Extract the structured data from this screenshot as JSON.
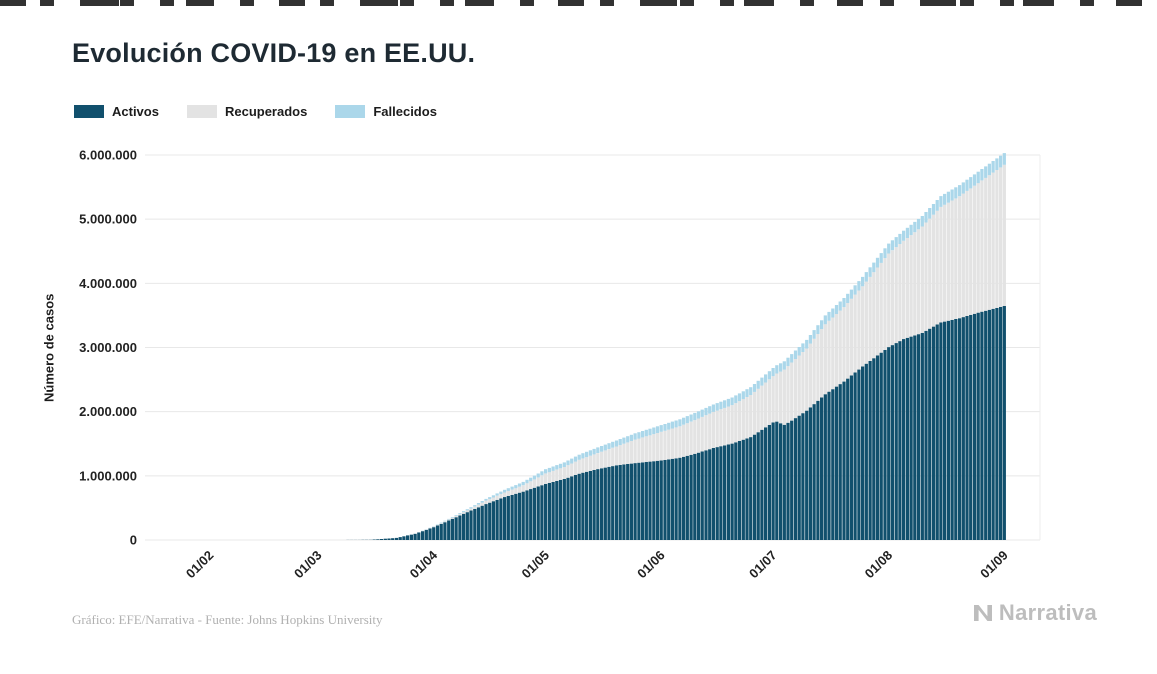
{
  "title": "Evolución COVID-19 en EE.UU.",
  "legend": {
    "items": [
      {
        "label": "Activos",
        "color": "#11506d"
      },
      {
        "label": "Recuperados",
        "color": "#e3e3e3"
      },
      {
        "label": "Fallecidos",
        "color": "#abd7ea"
      }
    ]
  },
  "y_axis": {
    "label": "Número de casos",
    "ticks": [
      {
        "label": "0",
        "value": 0
      },
      {
        "label": "1.000.000",
        "value": 1000000
      },
      {
        "label": "2.000.000",
        "value": 2000000
      },
      {
        "label": "3.000.000",
        "value": 3000000
      },
      {
        "label": "4.000.000",
        "value": 4000000
      },
      {
        "label": "5.000.000",
        "value": 5000000
      },
      {
        "label": "6.000.000",
        "value": 6000000
      }
    ]
  },
  "x_axis": {
    "ticks": [
      {
        "label": "01/02",
        "day": 32
      },
      {
        "label": "01/03",
        "day": 61
      },
      {
        "label": "01/04",
        "day": 92
      },
      {
        "label": "01/05",
        "day": 122
      },
      {
        "label": "01/06",
        "day": 153
      },
      {
        "label": "01/07",
        "day": 183
      },
      {
        "label": "01/08",
        "day": 214
      },
      {
        "label": "01/09",
        "day": 245
      }
    ]
  },
  "footer": {
    "credit": "Gráfico: EFE/Narrativa - Fuente: Johns Hopkins University",
    "brand": "Narrativa"
  },
  "chart_data": {
    "type": "bar",
    "stacked": true,
    "title": "Evolución COVID-19 en EE.UU.",
    "ylabel": "Número de casos",
    "ylim": [
      0,
      6000000
    ],
    "grid": "horizontal",
    "legend_position": "top-left",
    "x_unit": "day_of_year_2020",
    "dates": [
      "22/01",
      "01/02",
      "15/02",
      "01/03",
      "08/03",
      "15/03",
      "22/03",
      "27/03",
      "01/04",
      "06/04",
      "11/04",
      "15/04",
      "20/04",
      "25/04",
      "01/05",
      "06/05",
      "10/05",
      "15/05",
      "20/05",
      "25/05",
      "01/06",
      "06/06",
      "10/06",
      "15/06",
      "20/06",
      "25/06",
      "01/07",
      "02/07",
      "04/07",
      "06/07",
      "10/07",
      "15/07",
      "20/07",
      "25/07",
      "01/08",
      "05/08",
      "10/08",
      "15/08",
      "20/08",
      "25/08",
      "01/09"
    ],
    "days": [
      22,
      32,
      46,
      61,
      68,
      75,
      82,
      87,
      92,
      97,
      102,
      106,
      111,
      116,
      122,
      127,
      131,
      136,
      141,
      146,
      153,
      158,
      162,
      167,
      172,
      177,
      183,
      184,
      186,
      188,
      192,
      197,
      202,
      207,
      214,
      218,
      223,
      228,
      233,
      238,
      245
    ],
    "series": [
      {
        "name": "Activos",
        "color": "#11506d",
        "values": [
          1,
          8,
          13,
          70,
          480,
          3400,
          32400,
          97000,
          200000,
          330000,
          460000,
          560000,
          670000,
          754000,
          874000,
          950000,
          1034000,
          1105000,
          1164000,
          1198000,
          1240000,
          1282000,
          1343000,
          1434000,
          1502000,
          1604000,
          1832000,
          1845000,
          1795000,
          1860000,
          2016000,
          2272000,
          2469000,
          2704000,
          3006000,
          3132000,
          3227000,
          3391000,
          3457000,
          3543000,
          3647000
        ]
      },
      {
        "name": "Recuperados",
        "color": "#e3e3e3",
        "values": [
          0,
          0,
          3,
          7,
          8,
          12,
          180,
          900,
          8500,
          17000,
          31000,
          52000,
          71000,
          99000,
          164000,
          187000,
          216000,
          250000,
          294000,
          366000,
          445000,
          490000,
          525000,
          562000,
          600000,
          656000,
          720000,
          750000,
          860000,
          906000,
          969000,
          1090000,
          1160000,
          1250000,
          1460000,
          1530000,
          1660000,
          1800000,
          1900000,
          2020000,
          2200000
        ]
      },
      {
        "name": "Fallecidos",
        "color": "#abd7ea",
        "values": [
          0,
          0,
          0,
          1,
          22,
          63,
          420,
          1600,
          5100,
          10800,
          20500,
          28300,
          42000,
          52000,
          65000,
          72000,
          79500,
          87500,
          93400,
          98200,
          105000,
          109000,
          112000,
          115800,
          119000,
          122000,
          128000,
          129000,
          130000,
          131000,
          134000,
          138000,
          142000,
          147000,
          154000,
          158000,
          163000,
          169000,
          173500,
          177000,
          183000
        ]
      }
    ]
  }
}
